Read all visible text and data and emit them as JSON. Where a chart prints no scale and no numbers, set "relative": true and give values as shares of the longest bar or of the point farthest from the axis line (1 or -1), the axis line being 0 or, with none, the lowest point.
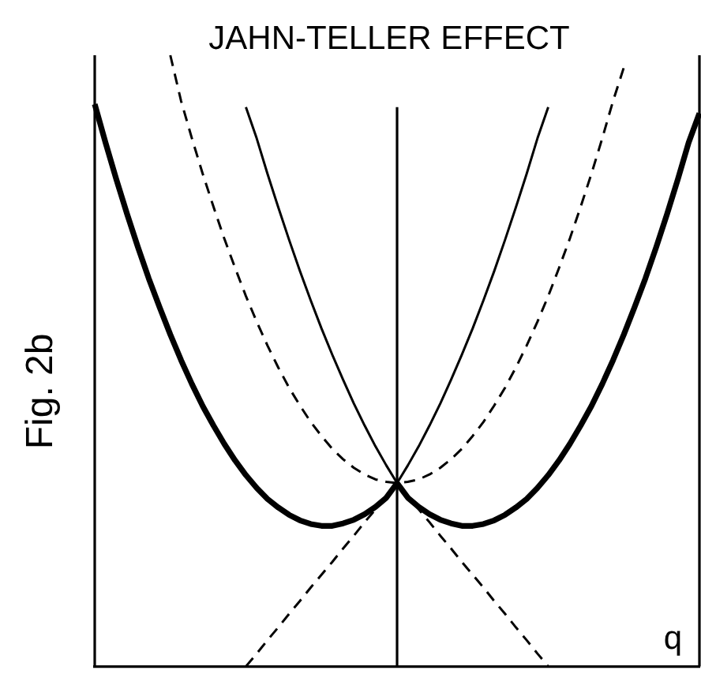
{
  "chart_data": {
    "type": "line",
    "title": "JAHN-TELLER EFFECT",
    "xlabel": "q",
    "ylabel": "Fig. 2b",
    "relative": true,
    "categories": [
      null,
      null,
      null,
      null,
      null,
      null,
      null,
      null,
      null,
      null,
      null,
      null,
      null,
      null,
      null,
      null,
      null,
      null,
      null,
      null,
      null,
      null,
      null,
      null,
      null,
      null,
      null,
      null,
      null,
      null,
      null,
      null,
      null,
      null,
      null,
      null,
      null,
      null,
      null,
      null,
      null,
      null,
      null,
      null,
      null,
      null,
      null,
      null,
      null,
      null,
      null,
      null,
      null,
      null,
      null,
      null,
      null
    ],
    "series": [
      {
        "color": "#000000",
        "values": [
          0.92,
          0.857,
          0.797,
          0.74,
          0.686,
          0.635,
          0.588,
          0.543,
          0.501,
          0.462,
          0.426,
          0.394,
          0.364,
          0.337,
          0.313,
          0.292,
          0.274,
          0.26,
          0.248,
          0.239,
          0.233,
          0.23,
          0.23,
          0.234,
          0.24,
          0.249,
          0.261,
          0.276,
          0.3,
          0.276,
          0.261,
          0.249,
          0.24,
          0.234,
          0.23,
          0.23,
          0.233,
          0.239,
          0.248,
          0.26,
          0.274,
          0.292,
          0.313,
          0.337,
          0.364,
          0.394,
          0.426,
          0.462,
          0.501,
          0.543,
          0.588,
          0.635,
          0.686,
          0.74,
          0.797,
          0.857,
          0.905
        ]
      },
      {
        "color": "#000000",
        "values": [
          null,
          null,
          null,
          null,
          null,
          null,
          null,
          null,
          null,
          null,
          null,
          null,
          null,
          null,
          0.915,
          0.864,
          0.806,
          0.751,
          0.698,
          0.647,
          0.599,
          0.553,
          0.51,
          0.469,
          0.43,
          0.394,
          0.36,
          0.329,
          0.3,
          0.329,
          0.36,
          0.394,
          0.43,
          0.469,
          0.51,
          0.553,
          0.599,
          0.647,
          0.698,
          0.751,
          0.806,
          0.864,
          0.915,
          null,
          null,
          null,
          null,
          null,
          null,
          null,
          null,
          null,
          null,
          null,
          null,
          null,
          null
        ]
      },
      {
        "color": "#000000",
        "line_style": "dashed",
        "values": [
          null,
          null,
          null,
          null,
          null,
          null,
          null,
          1.0,
          0.925,
          0.864,
          0.806,
          0.752,
          0.7,
          0.652,
          0.606,
          0.564,
          0.525,
          0.489,
          0.456,
          0.427,
          0.4,
          0.377,
          0.356,
          0.339,
          0.325,
          0.314,
          0.306,
          0.302,
          0.3,
          0.302,
          0.306,
          0.314,
          0.325,
          0.339,
          0.356,
          0.377,
          0.4,
          0.427,
          0.456,
          0.489,
          0.525,
          0.564,
          0.606,
          0.652,
          0.7,
          0.752,
          0.806,
          0.864,
          0.925,
          0.98,
          null,
          null,
          null,
          null,
          null,
          null,
          null
        ]
      },
      {
        "color": "#000000",
        "line_style": "dashed",
        "values": [
          null,
          null,
          null,
          null,
          null,
          null,
          null,
          null,
          null,
          null,
          null,
          null,
          null,
          null,
          0.0,
          0.021,
          0.043,
          0.064,
          0.086,
          0.107,
          0.129,
          0.15,
          0.171,
          0.193,
          0.214,
          0.236,
          0.257,
          0.279,
          0.3,
          0.279,
          0.257,
          0.236,
          0.214,
          0.193,
          0.171,
          0.15,
          0.129,
          0.107,
          0.086,
          0.064,
          0.043,
          0.021,
          0.0,
          null,
          null,
          null,
          null,
          null,
          null,
          null,
          null,
          null,
          null,
          null,
          null,
          null,
          null
        ]
      }
    ]
  }
}
